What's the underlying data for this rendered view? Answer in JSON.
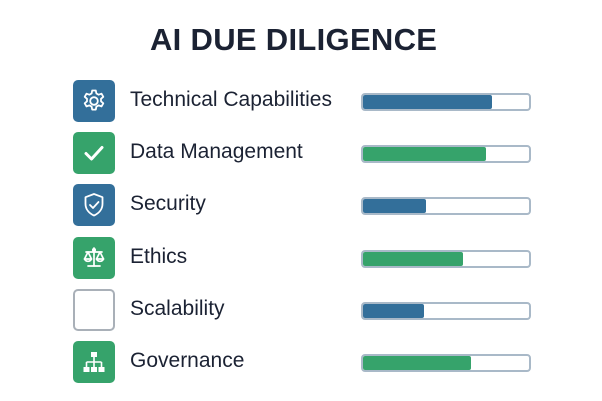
{
  "title": "AI DUE DILIGENCE",
  "colors": {
    "blue": "#336f9a",
    "green": "#36a36b",
    "track_border": "#a9b9c8",
    "text": "#1b2233"
  },
  "categories": [
    {
      "label": "Technical Capabilities",
      "icon": "gear-icon",
      "color": "blue",
      "progress_percent": 78
    },
    {
      "label": "Data Management",
      "icon": "checkmark-icon",
      "color": "green",
      "progress_percent": 74
    },
    {
      "label": "Security",
      "icon": "shield-check-icon",
      "color": "blue",
      "progress_percent": 38
    },
    {
      "label": "Ethics",
      "icon": "scales-icon",
      "color": "green",
      "progress_percent": 60
    },
    {
      "label": "Scalability",
      "icon": "empty-box-icon",
      "color": "none",
      "progress_percent": 37
    },
    {
      "label": "Governance",
      "icon": "hierarchy-icon",
      "color": "green",
      "progress_percent": 65
    }
  ]
}
